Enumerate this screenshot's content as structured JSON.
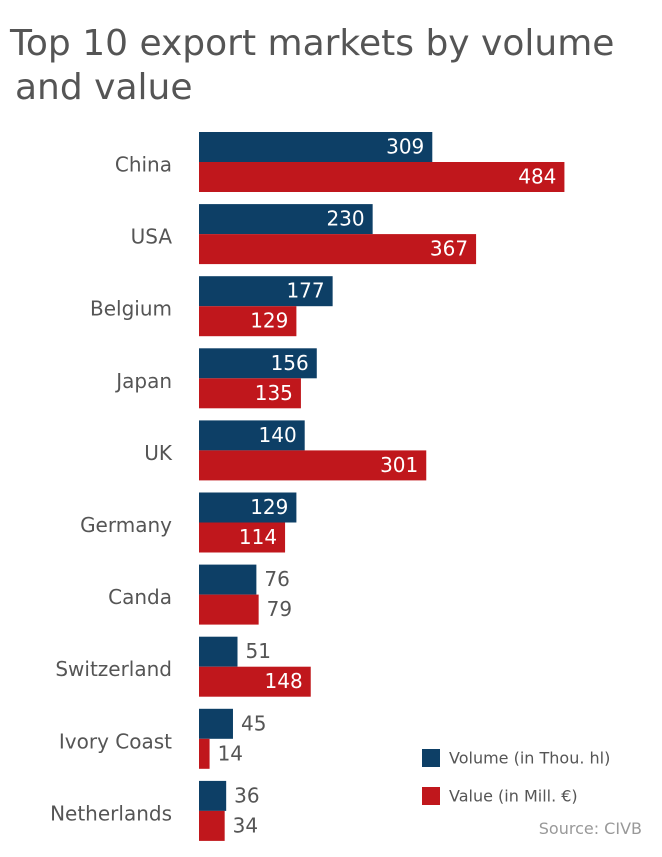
{
  "chart_data": {
    "type": "bar",
    "orientation": "horizontal",
    "title_line1": "Top 10 export markets by volume",
    "title_line2": "and value",
    "categories": [
      "China",
      "USA",
      "Belgium",
      "Japan",
      "UK",
      "Germany",
      "Canda",
      "Switzerland",
      "Ivory Coast",
      "Netherlands"
    ],
    "series": [
      {
        "name": "Volume (in Thou. hl)",
        "color": "#0d3f66",
        "values": [
          309,
          230,
          177,
          156,
          140,
          129,
          76,
          51,
          45,
          36
        ]
      },
      {
        "name": "Value (in Mill. €)",
        "color": "#c0171c",
        "values": [
          484,
          367,
          129,
          135,
          301,
          114,
          79,
          148,
          14,
          34
        ]
      }
    ],
    "legend_position": "bottom-right",
    "grid": false,
    "source": "Source: CIVB"
  }
}
